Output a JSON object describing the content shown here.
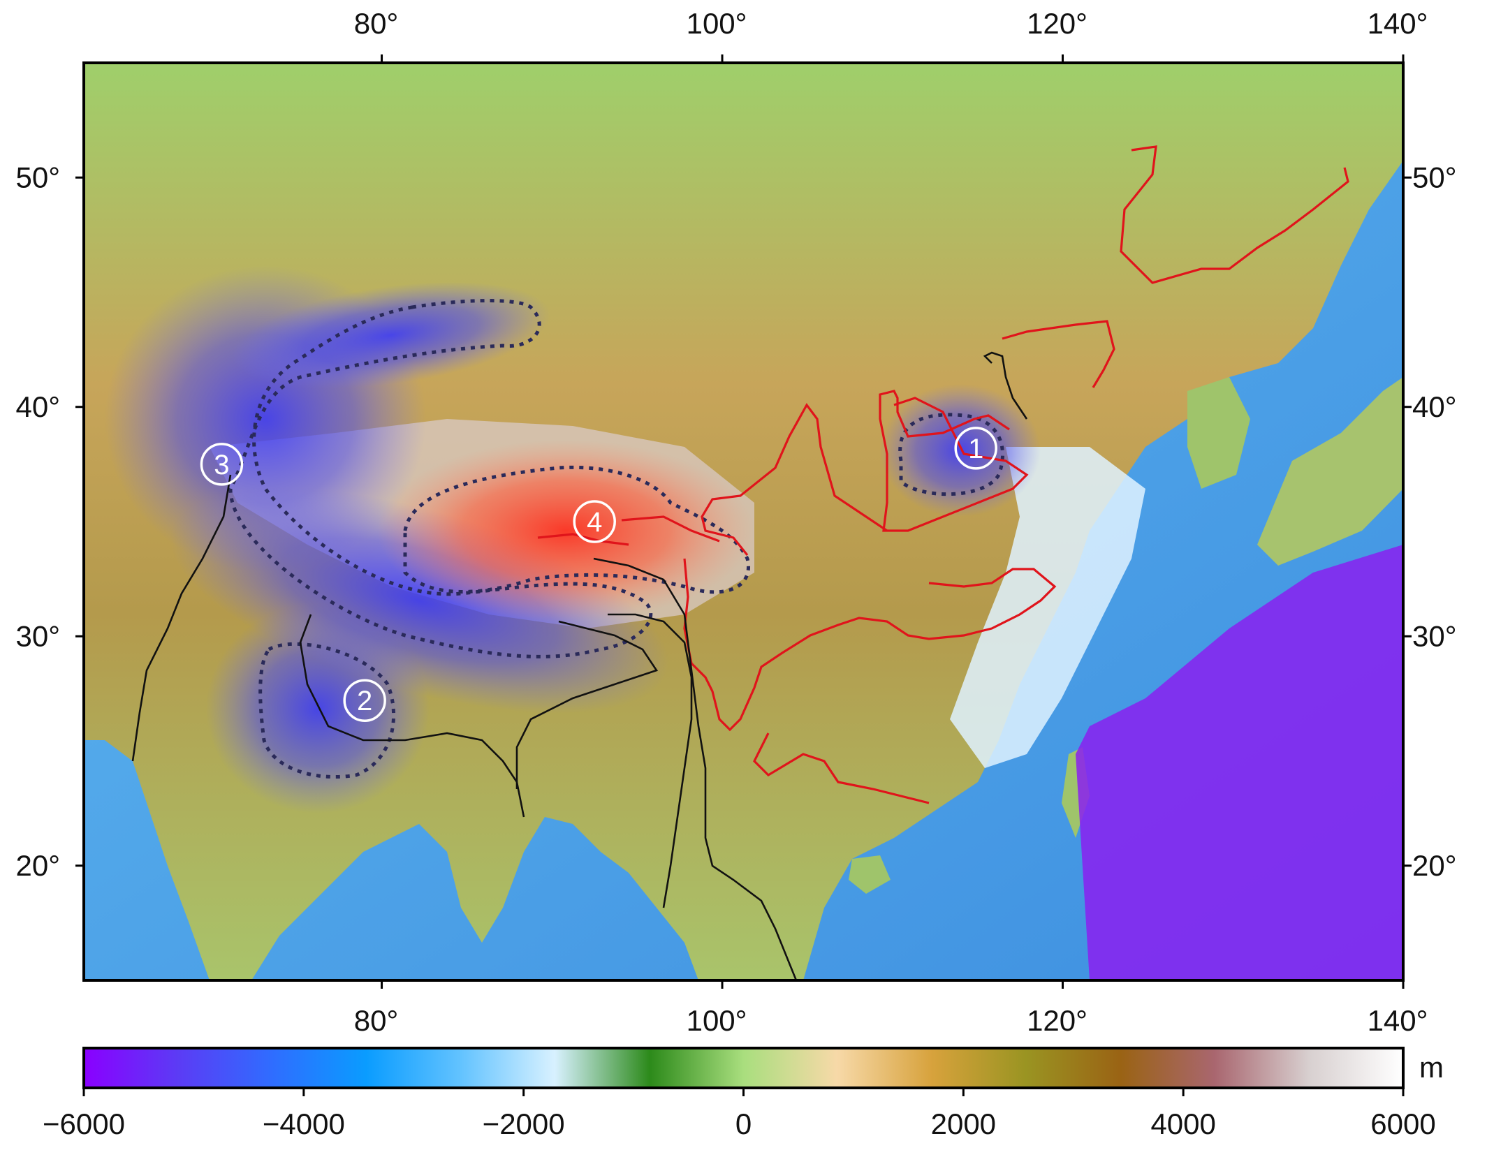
{
  "map": {
    "lon_range": [
      62.5,
      140
    ],
    "lat_range": [
      15,
      55
    ],
    "lon_ticks": [
      80,
      100,
      120,
      140
    ],
    "lat_ticks": [
      20,
      30,
      40,
      50
    ],
    "degree_symbol": "°",
    "land_base_color": "#b8a66a",
    "ocean_base_color": "#4fa8e8",
    "regions": [
      {
        "id": "1",
        "label": "1",
        "lon": 114.9,
        "lat": 38.2,
        "style": "negative"
      },
      {
        "id": "2",
        "label": "2",
        "lon": 79.0,
        "lat": 27.2,
        "style": "negative"
      },
      {
        "id": "3",
        "label": "3",
        "lon": 70.6,
        "lat": 37.5,
        "style": "negative"
      },
      {
        "id": "4",
        "label": "4",
        "lon": 92.5,
        "lat": 35.0,
        "style": "positive"
      }
    ]
  },
  "colorbar": {
    "min": -6000,
    "max": 6000,
    "tick_values": [
      -6000,
      -4000,
      -2000,
      0,
      2000,
      4000,
      6000
    ],
    "tick_labels": [
      "−6000",
      "−4000",
      "−2000",
      "0",
      "2000",
      "4000",
      "6000"
    ],
    "unit": "m",
    "stops": [
      "#8a00ff",
      "#5c3bf5",
      "#2f6dff",
      "#0a9cff",
      "#63c3ff",
      "#d8f1ff",
      "#2c8a1a",
      "#a9de7e",
      "#f7d9a8",
      "#d7a23c",
      "#9a9422",
      "#9a6314",
      "#a9666f",
      "#d8d0d0",
      "#ffffff"
    ]
  },
  "colors": {
    "frame": "#000000",
    "river_major": "#e0141b",
    "river_minor": "#111111",
    "contour": "#2a2a5a",
    "negative_anomaly": "#3b3bff",
    "positive_anomaly": "#ff3a2a"
  }
}
